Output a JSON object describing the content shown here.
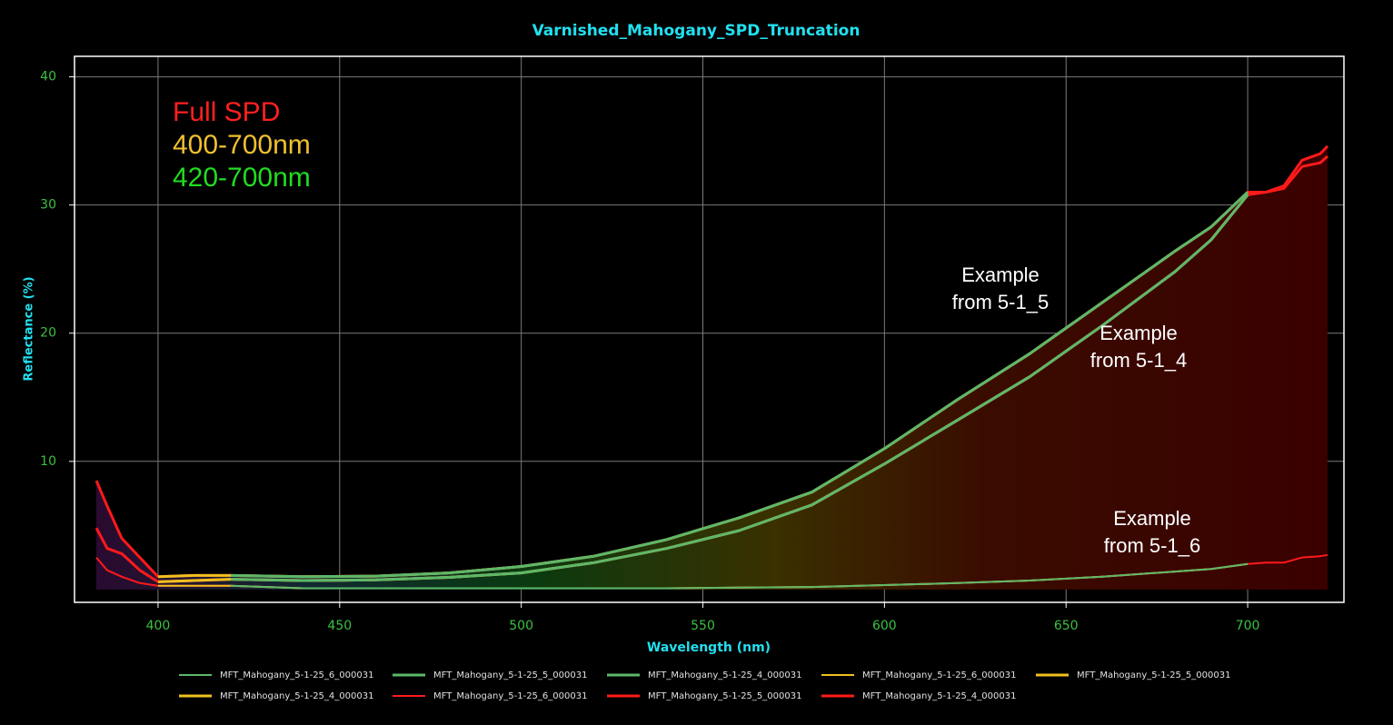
{
  "chart_data": {
    "type": "line",
    "title": "Varnished_Mahogany_SPD_Truncation",
    "x_label": "Wavelength (nm)",
    "y_label": "Reflectance (%)",
    "xlim": [
      377,
      726.5
    ],
    "ylim": [
      -1,
      41.6
    ],
    "xticks": [
      400,
      450,
      500,
      550,
      600,
      650,
      700
    ],
    "yticks": [
      10,
      20,
      30,
      40
    ],
    "grid": true,
    "legend": "bottom",
    "x": [
      383,
      386,
      390,
      395,
      400,
      410,
      420,
      440,
      460,
      480,
      500,
      520,
      540,
      560,
      580,
      600,
      620,
      640,
      660,
      680,
      690,
      700,
      705,
      710,
      715,
      720,
      722
    ],
    "series": [
      {
        "name": "MFT_Mahogany_5-1-25_6_000031",
        "color": "#5cb86a",
        "width": 2,
        "values": [
          null,
          null,
          null,
          null,
          null,
          null,
          0.3,
          0.1,
          0.1,
          0.1,
          0.1,
          0.1,
          0.1,
          0.15,
          0.2,
          0.35,
          0.5,
          0.7,
          1.0,
          1.4,
          1.6,
          2.0,
          null,
          null,
          null,
          null,
          null
        ]
      },
      {
        "name": "MFT_Mahogany_5-1-25_5_000031",
        "color": "#5cb86a",
        "width": 3,
        "values": [
          null,
          null,
          null,
          null,
          null,
          null,
          1.1,
          1.0,
          1.05,
          1.3,
          1.8,
          2.6,
          3.9,
          5.6,
          7.6,
          11.0,
          14.8,
          18.4,
          22.4,
          26.4,
          28.3,
          31.0,
          null,
          null,
          null,
          null,
          null
        ]
      },
      {
        "name": "MFT_Mahogany_5-1-25_4_000031",
        "color": "#5cb86a",
        "width": 3,
        "values": [
          null,
          null,
          null,
          null,
          null,
          null,
          0.8,
          0.7,
          0.75,
          0.95,
          1.3,
          2.1,
          3.2,
          4.6,
          6.6,
          9.8,
          13.2,
          16.6,
          20.6,
          24.8,
          27.3,
          30.8,
          null,
          null,
          null,
          null,
          null
        ]
      },
      {
        "name": "MFT_Mahogany_5-1-25_6_000031",
        "color": "#f0c020",
        "width": 2,
        "values": [
          null,
          null,
          null,
          null,
          0.3,
          0.3,
          0.3,
          0.1,
          0.1,
          0.1,
          0.1,
          0.1,
          0.1,
          0.15,
          0.2,
          0.35,
          0.5,
          0.7,
          1.0,
          1.4,
          1.6,
          2.0,
          null,
          null,
          null,
          null,
          null
        ]
      },
      {
        "name": "MFT_Mahogany_5-1-25_5_000031",
        "color": "#f0c020",
        "width": 3,
        "values": [
          null,
          null,
          null,
          null,
          1.0,
          1.1,
          1.1,
          1.0,
          1.05,
          1.3,
          1.8,
          2.6,
          3.9,
          5.6,
          7.6,
          11.0,
          14.8,
          18.4,
          22.4,
          26.4,
          28.3,
          31.0,
          null,
          null,
          null,
          null,
          null
        ]
      },
      {
        "name": "MFT_Mahogany_5-1-25_4_000031",
        "color": "#f0c020",
        "width": 3,
        "values": [
          null,
          null,
          null,
          null,
          0.6,
          0.7,
          0.8,
          0.7,
          0.75,
          0.95,
          1.3,
          2.1,
          3.2,
          4.6,
          6.6,
          9.8,
          13.2,
          16.6,
          20.6,
          24.8,
          27.3,
          30.8,
          null,
          null,
          null,
          null,
          null
        ]
      },
      {
        "name": "MFT_Mahogany_5-1-25_6_000031",
        "color": "#ff1a1a",
        "width": 2,
        "values": [
          2.5,
          1.5,
          1.0,
          0.5,
          0.3,
          0.3,
          0.3,
          0.1,
          0.1,
          0.1,
          0.1,
          0.1,
          0.1,
          0.15,
          0.2,
          0.35,
          0.5,
          0.7,
          1.0,
          1.4,
          1.6,
          2.0,
          2.1,
          2.1,
          2.5,
          2.6,
          2.7
        ]
      },
      {
        "name": "MFT_Mahogany_5-1-25_5_000031",
        "color": "#ff1a1a",
        "width": 3,
        "values": [
          8.5,
          6.5,
          4.0,
          2.5,
          1.0,
          1.1,
          1.1,
          1.0,
          1.05,
          1.3,
          1.8,
          2.6,
          3.9,
          5.6,
          7.6,
          11.0,
          14.8,
          18.4,
          22.4,
          26.4,
          28.3,
          31.0,
          31.0,
          31.5,
          33.5,
          34.0,
          34.6
        ]
      },
      {
        "name": "MFT_Mahogany_5-1-25_4_000031",
        "color": "#ff1a1a",
        "width": 3,
        "values": [
          4.8,
          3.2,
          2.8,
          1.5,
          0.6,
          0.7,
          0.8,
          0.7,
          0.75,
          0.95,
          1.3,
          2.1,
          3.2,
          4.6,
          6.6,
          9.8,
          13.2,
          16.6,
          20.6,
          24.8,
          27.3,
          30.8,
          31.0,
          31.3,
          33.0,
          33.3,
          33.8
        ]
      }
    ],
    "key_notes": [
      {
        "text": "Full SPD",
        "color": "#ff2020"
      },
      {
        "text": "400-700nm",
        "color": "#f0c030"
      },
      {
        "text": "420-700nm",
        "color": "#20dd20"
      }
    ],
    "annotations": [
      {
        "lines": [
          "Example",
          "from 5-1_5"
        ]
      },
      {
        "lines": [
          "Example",
          "from 5-1_4"
        ]
      },
      {
        "lines": [
          "Example",
          "from 5-1_6"
        ]
      }
    ]
  }
}
